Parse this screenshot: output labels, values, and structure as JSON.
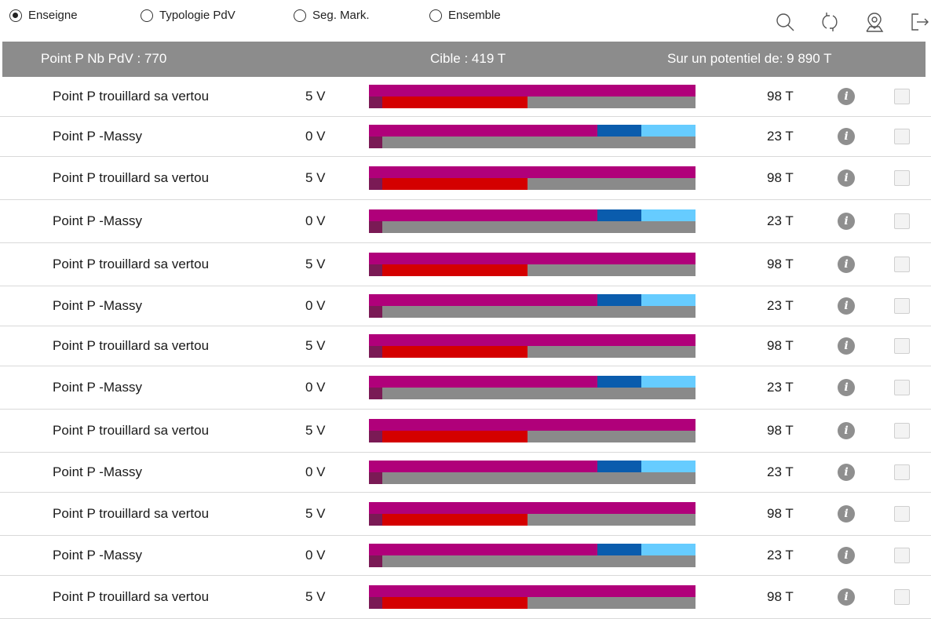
{
  "filters": [
    {
      "label": "Enseigne",
      "checked": true
    },
    {
      "label": "Typologie PdV",
      "checked": false
    },
    {
      "label": "Seg. Mark.",
      "checked": false
    },
    {
      "label": "Ensemble",
      "checked": false
    }
  ],
  "toolbar": {
    "icons": [
      "search-icon",
      "refresh-icon",
      "map-pin-icon",
      "logout-icon"
    ]
  },
  "summary": {
    "store_count": "Point P Nb PdV : 770",
    "target": "Cible : 419 T",
    "potential": "Sur un potentiel de: 9 890 T"
  },
  "colors": {
    "header_bg": "#8c8c8c",
    "magenta": "#b0007a",
    "dark_purple": "#7a1a55",
    "red": "#d40000",
    "dark_blue": "#0a5cad",
    "light_blue": "#66ccff",
    "grey_bar": "#8a8a8a"
  },
  "rows": [
    {
      "name": "Point P trouillard sa vertou",
      "v": "5 V",
      "t": "98 T",
      "type": "A"
    },
    {
      "name": "Point P -Massy",
      "v": "0 V",
      "t": "23 T",
      "type": "B"
    },
    {
      "name": "Point P trouillard sa vertou",
      "v": "5 V",
      "t": "98 T",
      "type": "A"
    },
    {
      "name": "Point P -Massy",
      "v": "0 V",
      "t": "23 T",
      "type": "B"
    },
    {
      "name": "Point P trouillard sa vertou",
      "v": "5 V",
      "t": "98 T",
      "type": "A"
    },
    {
      "name": "Point P -Massy",
      "v": "0 V",
      "t": "23 T",
      "type": "B"
    },
    {
      "name": "Point P trouillard sa vertou",
      "v": "5 V",
      "t": "98 T",
      "type": "A"
    },
    {
      "name": "Point P -Massy",
      "v": "0 V",
      "t": "23 T",
      "type": "B"
    },
    {
      "name": "Point P trouillard sa vertou",
      "v": "5 V",
      "t": "98 T",
      "type": "A"
    },
    {
      "name": "Point P -Massy",
      "v": "0 V",
      "t": "23 T",
      "type": "B"
    },
    {
      "name": "Point P trouillard sa vertou",
      "v": "5 V",
      "t": "98 T",
      "type": "A"
    },
    {
      "name": "Point P -Massy",
      "v": "0 V",
      "t": "23 T",
      "type": "B"
    },
    {
      "name": "Point P trouillard sa vertou",
      "v": "5 V",
      "t": "98 T",
      "type": "A"
    }
  ],
  "bar_levels": {
    "A": {
      "top_magenta": 1.0,
      "bottom_red": 0.485
    },
    "B": {
      "top_magenta": 0.7,
      "top_dark_blue": 0.135,
      "top_light_blue": 0.165,
      "bottom_red": 0.0
    }
  },
  "info_glyph": "i"
}
